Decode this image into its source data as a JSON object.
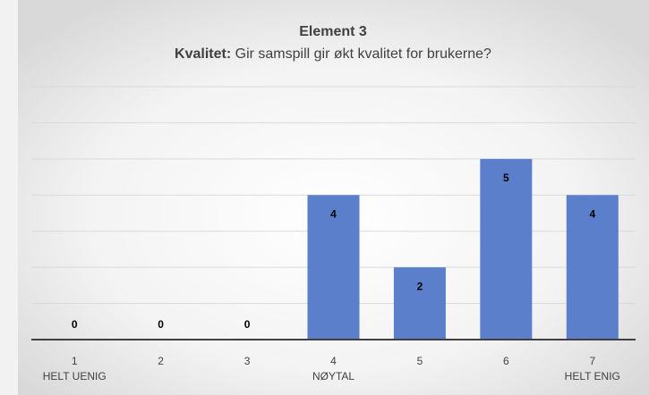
{
  "chart_data": {
    "type": "bar",
    "title": "Element 3",
    "subtitle_bold": "Kvalitet:",
    "subtitle": "Gir samspill gir økt kvalitet for brukerne?",
    "categories": [
      "1",
      "2",
      "3",
      "4",
      "5",
      "6",
      "7"
    ],
    "category_sublabels": [
      "HELT UENIG",
      null,
      null,
      "NØYTAL",
      null,
      null,
      "HELT ENIG"
    ],
    "values": [
      0,
      0,
      0,
      4,
      2,
      5,
      4
    ],
    "color": "#5b7fcb",
    "ylim": [
      0,
      7
    ],
    "yticks": [
      0,
      1,
      2,
      3,
      4,
      5,
      6,
      7
    ],
    "grid": true
  }
}
